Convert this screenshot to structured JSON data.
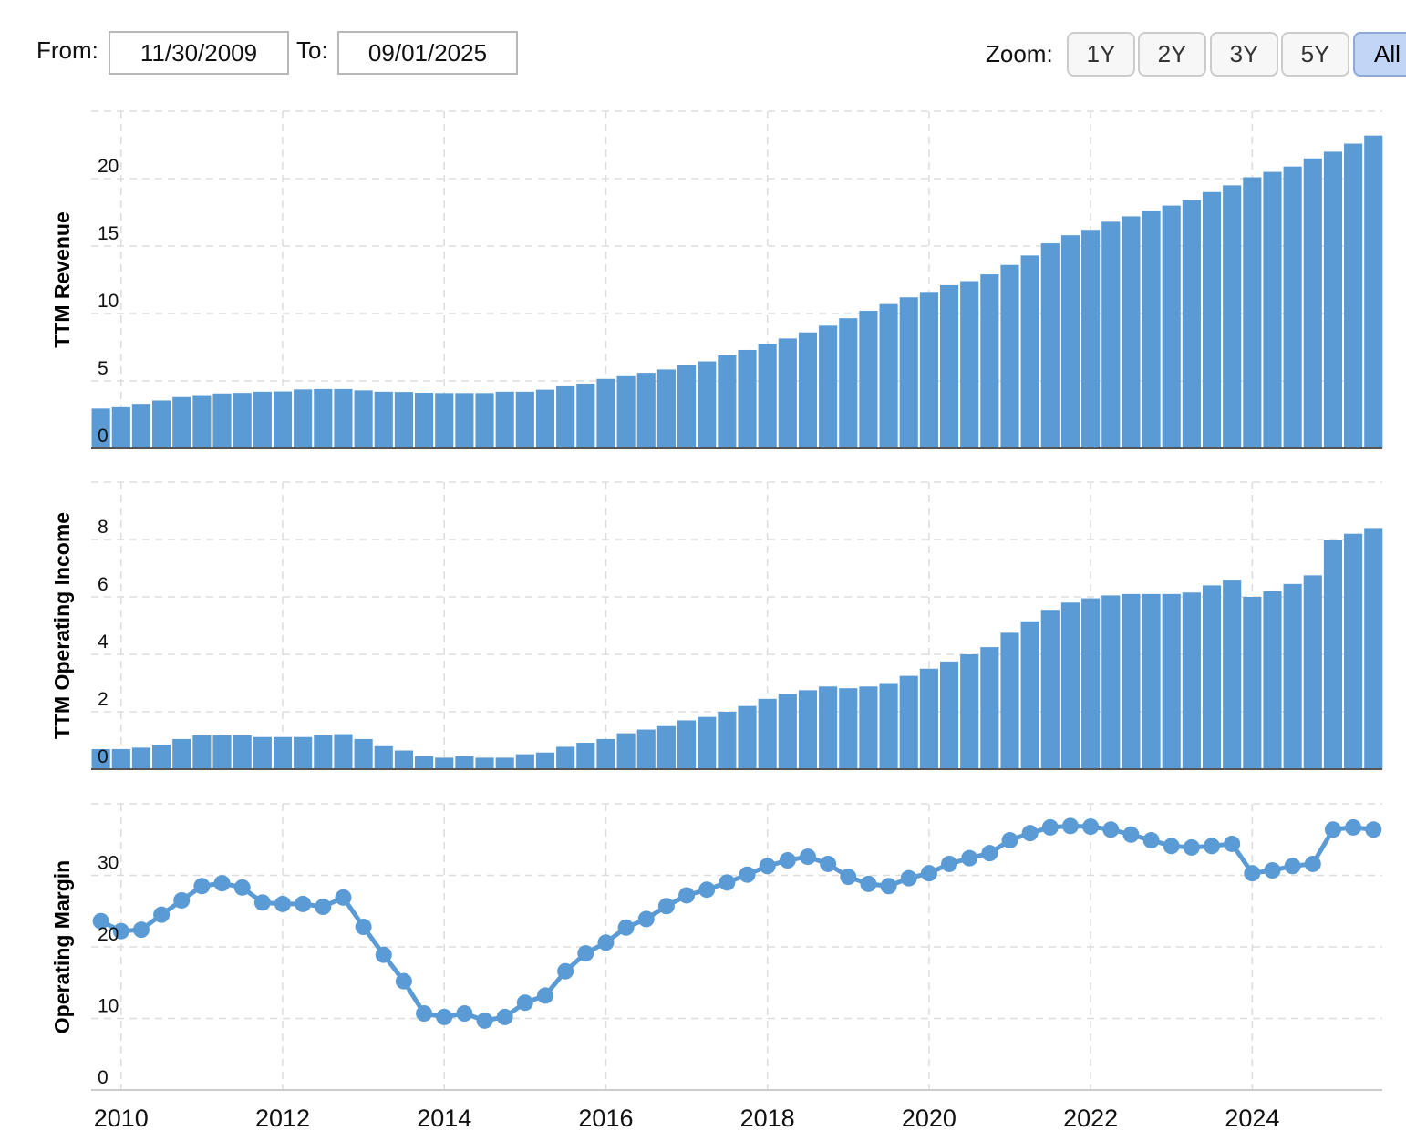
{
  "controls": {
    "from_label": "From:",
    "from": "11/30/2009",
    "to_label": "To:",
    "to": "09/01/2025",
    "zoom_label": "Zoom:",
    "zoom_buttons": [
      "1Y",
      "2Y",
      "3Y",
      "5Y",
      "All"
    ],
    "selected_zoom": "All"
  },
  "chart_data": [
    {
      "type": "bar",
      "y_label": "TTM Revenue",
      "color": "#5b9bd5",
      "grid": true,
      "xlim": [
        2009.63,
        2025.61
      ],
      "ylim": [
        0,
        25
      ],
      "yticks": [
        0,
        5,
        10,
        15,
        20
      ],
      "x": [
        2009.75,
        2010,
        2010.25,
        2010.5,
        2010.75,
        2011,
        2011.25,
        2011.5,
        2011.75,
        2012,
        2012.25,
        2012.5,
        2012.75,
        2013,
        2013.25,
        2013.5,
        2013.75,
        2014,
        2014.25,
        2014.5,
        2014.75,
        2015,
        2015.25,
        2015.5,
        2015.75,
        2016,
        2016.25,
        2016.5,
        2016.75,
        2017,
        2017.25,
        2017.5,
        2017.75,
        2018,
        2018.25,
        2018.5,
        2018.75,
        2019,
        2019.25,
        2019.5,
        2019.75,
        2020,
        2020.25,
        2020.5,
        2020.75,
        2021,
        2021.25,
        2021.5,
        2021.75,
        2022,
        2022.25,
        2022.5,
        2022.75,
        2023,
        2023.25,
        2023.5,
        2023.75,
        2024,
        2024.25,
        2024.5,
        2024.75,
        2025,
        2025.25,
        2025.5
      ],
      "values": [
        2.95,
        3.05,
        3.3,
        3.55,
        3.8,
        3.95,
        4.07,
        4.11,
        4.2,
        4.22,
        4.37,
        4.4,
        4.4,
        4.3,
        4.2,
        4.18,
        4.12,
        4.1,
        4.1,
        4.1,
        4.2,
        4.2,
        4.35,
        4.6,
        4.8,
        5.15,
        5.35,
        5.6,
        5.85,
        6.2,
        6.45,
        6.9,
        7.3,
        7.75,
        8.15,
        8.6,
        9.1,
        9.65,
        10.2,
        10.7,
        11.2,
        11.6,
        12.1,
        12.4,
        12.9,
        13.6,
        14.3,
        15.2,
        15.8,
        16.2,
        16.8,
        17.2,
        17.6,
        18.0,
        18.4,
        19.0,
        19.5,
        20.1,
        20.5,
        20.9,
        21.5,
        22.0,
        22.6,
        23.2
      ]
    },
    {
      "type": "bar",
      "y_label": "TTM Operating Income",
      "color": "#5b9bd5",
      "grid": true,
      "xlim": [
        2009.63,
        2025.61
      ],
      "ylim": [
        0,
        10
      ],
      "yticks": [
        0,
        2,
        4,
        6,
        8
      ],
      "x": [
        2009.75,
        2010,
        2010.25,
        2010.5,
        2010.75,
        2011,
        2011.25,
        2011.5,
        2011.75,
        2012,
        2012.25,
        2012.5,
        2012.75,
        2013,
        2013.25,
        2013.5,
        2013.75,
        2014,
        2014.25,
        2014.5,
        2014.75,
        2015,
        2015.25,
        2015.5,
        2015.75,
        2016,
        2016.25,
        2016.5,
        2016.75,
        2017,
        2017.25,
        2017.5,
        2017.75,
        2018,
        2018.25,
        2018.5,
        2018.75,
        2019,
        2019.25,
        2019.5,
        2019.75,
        2020,
        2020.25,
        2020.5,
        2020.75,
        2021,
        2021.25,
        2021.5,
        2021.75,
        2022,
        2022.25,
        2022.5,
        2022.75,
        2023,
        2023.25,
        2023.5,
        2023.75,
        2024,
        2024.25,
        2024.5,
        2024.75,
        2025,
        2025.25,
        2025.5
      ],
      "values": [
        0.7,
        0.7,
        0.75,
        0.85,
        1.05,
        1.18,
        1.18,
        1.18,
        1.12,
        1.12,
        1.12,
        1.18,
        1.22,
        1.05,
        0.8,
        0.65,
        0.45,
        0.4,
        0.45,
        0.4,
        0.4,
        0.52,
        0.58,
        0.78,
        0.92,
        1.05,
        1.25,
        1.38,
        1.5,
        1.7,
        1.82,
        2.0,
        2.2,
        2.45,
        2.62,
        2.75,
        2.88,
        2.82,
        2.88,
        3.0,
        3.25,
        3.5,
        3.75,
        4.0,
        4.25,
        4.75,
        5.15,
        5.55,
        5.8,
        5.95,
        6.05,
        6.1,
        6.1,
        6.1,
        6.15,
        6.4,
        6.6,
        6.0,
        6.2,
        6.45,
        6.75,
        8.0,
        8.2,
        8.4
      ]
    },
    {
      "type": "line",
      "y_label": "Operating Margin",
      "color": "#5b9bd5",
      "grid": true,
      "xlim": [
        2009.63,
        2025.61
      ],
      "ylim": [
        0,
        40
      ],
      "yticks": [
        0,
        10,
        20,
        30
      ],
      "xticks": [
        2010,
        2012,
        2014,
        2016,
        2018,
        2020,
        2022,
        2024
      ],
      "x": [
        2009.75,
        2010,
        2010.25,
        2010.5,
        2010.75,
        2011,
        2011.25,
        2011.5,
        2011.75,
        2012,
        2012.25,
        2012.5,
        2012.75,
        2013,
        2013.25,
        2013.5,
        2013.75,
        2014,
        2014.25,
        2014.5,
        2014.75,
        2015,
        2015.25,
        2015.5,
        2015.75,
        2016,
        2016.25,
        2016.5,
        2016.75,
        2017,
        2017.25,
        2017.5,
        2017.75,
        2018,
        2018.25,
        2018.5,
        2018.75,
        2019,
        2019.25,
        2019.5,
        2019.75,
        2020,
        2020.25,
        2020.5,
        2020.75,
        2021,
        2021.25,
        2021.5,
        2021.75,
        2022,
        2022.25,
        2022.5,
        2022.75,
        2023,
        2023.25,
        2023.5,
        2023.75,
        2024,
        2024.25,
        2024.5,
        2024.75,
        2025,
        2025.25,
        2025.5
      ],
      "values": [
        23.6,
        22.2,
        22.4,
        24.5,
        26.5,
        28.5,
        28.9,
        28.3,
        26.2,
        26.0,
        26.0,
        25.6,
        26.9,
        22.8,
        18.9,
        15.2,
        10.7,
        10.2,
        10.7,
        9.7,
        10.2,
        12.2,
        13.2,
        16.6,
        19.1,
        20.6,
        22.7,
        23.9,
        25.7,
        27.2,
        28.0,
        29.0,
        30.1,
        31.3,
        32.1,
        32.6,
        31.6,
        29.8,
        28.8,
        28.5,
        29.6,
        30.3,
        31.6,
        32.4,
        33.1,
        34.9,
        35.9,
        36.7,
        36.9,
        36.8,
        36.4,
        35.7,
        34.9,
        34.1,
        33.9,
        34.1,
        34.4,
        30.3,
        30.7,
        31.3,
        31.6,
        36.4,
        36.7,
        36.4
      ]
    }
  ]
}
